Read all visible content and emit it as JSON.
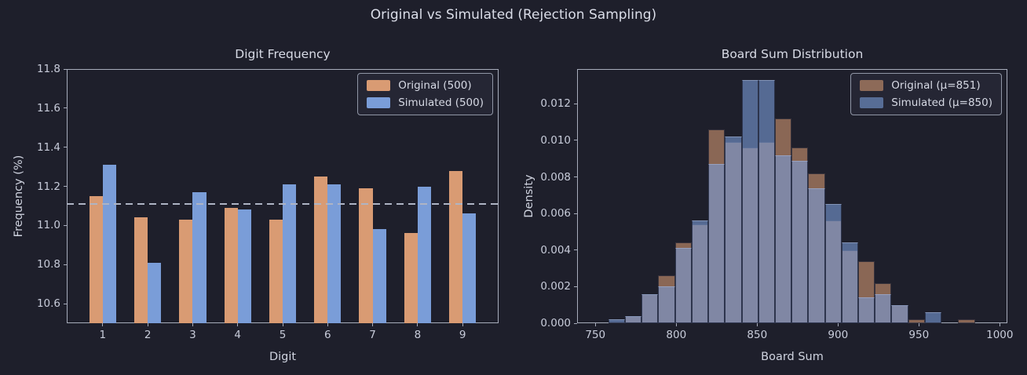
{
  "figure": {
    "title": "Original vs Simulated (Rejection Sampling)",
    "background": "#1E1F2B",
    "text_color": "#D8DBE6",
    "spine_color": "#A7ACBB"
  },
  "colors": {
    "original_solid": "#D99B73",
    "simulated_solid": "#7A9DD8",
    "original_translucent": "rgba(217,155,115,0.58)",
    "simulated_translucent": "rgba(122,157,216,0.60)",
    "reference_line": "#AEB4C4"
  },
  "chart_data": [
    {
      "type": "bar",
      "title": "Digit Frequency",
      "xlabel": "Digit",
      "ylabel": "Frequency (%)",
      "categories": [
        "1",
        "2",
        "3",
        "4",
        "5",
        "6",
        "7",
        "8",
        "9"
      ],
      "series": [
        {
          "name": "Original (500)",
          "values": [
            11.15,
            11.04,
            11.03,
            11.09,
            11.03,
            11.25,
            11.19,
            10.96,
            11.28
          ]
        },
        {
          "name": "Simulated (500)",
          "values": [
            11.31,
            10.81,
            11.17,
            11.08,
            11.21,
            11.21,
            10.98,
            11.2,
            11.06
          ]
        }
      ],
      "xlim": [
        0.2,
        9.8
      ],
      "ylim": [
        10.5,
        11.8
      ],
      "yticks": [
        10.6,
        10.8,
        11.0,
        11.2,
        11.4,
        11.6,
        11.8
      ],
      "ytick_labels": [
        "10.6",
        "10.8",
        "11.0",
        "11.2",
        "11.4",
        "11.6",
        "11.8"
      ],
      "reference_line": 11.111,
      "legend_position": "upper right",
      "grid": false,
      "bar_width_units": 0.3
    },
    {
      "type": "histogram",
      "title": "Board Sum Distribution",
      "xlabel": "Board Sum",
      "ylabel": "Density",
      "bin_start": 758,
      "bin_width": 10.3,
      "series": [
        {
          "name": "Original (μ=851)",
          "densities": [
            0.0,
            0.0004,
            0.0016,
            0.0026,
            0.0044,
            0.0054,
            0.0106,
            0.0099,
            0.0096,
            0.0099,
            0.0112,
            0.0096,
            0.0082,
            0.0056,
            0.004,
            0.0034,
            0.0022,
            0.001,
            0.0002,
            0.0,
            0.0,
            0.0002
          ]
        },
        {
          "name": "Simulated (μ=850)",
          "densities": [
            0.0002,
            0.0004,
            0.0016,
            0.002,
            0.0041,
            0.0056,
            0.0087,
            0.0102,
            0.0133,
            0.0133,
            0.0092,
            0.0089,
            0.0074,
            0.0065,
            0.0044,
            0.0014,
            0.0016,
            0.001,
            0.0,
            0.0006,
            0.0,
            0.0
          ]
        }
      ],
      "xlim": [
        738.7,
        1004.7
      ],
      "ylim": [
        0,
        0.0139
      ],
      "xticks": [
        750,
        800,
        850,
        900,
        950,
        1000
      ],
      "xtick_labels": [
        "750",
        "800",
        "850",
        "900",
        "950",
        "1000"
      ],
      "yticks": [
        0.0,
        0.002,
        0.004,
        0.006,
        0.008,
        0.01,
        0.012
      ],
      "ytick_labels": [
        "0.000",
        "0.002",
        "0.004",
        "0.006",
        "0.008",
        "0.010",
        "0.012"
      ],
      "legend_position": "upper right",
      "grid": false
    }
  ]
}
